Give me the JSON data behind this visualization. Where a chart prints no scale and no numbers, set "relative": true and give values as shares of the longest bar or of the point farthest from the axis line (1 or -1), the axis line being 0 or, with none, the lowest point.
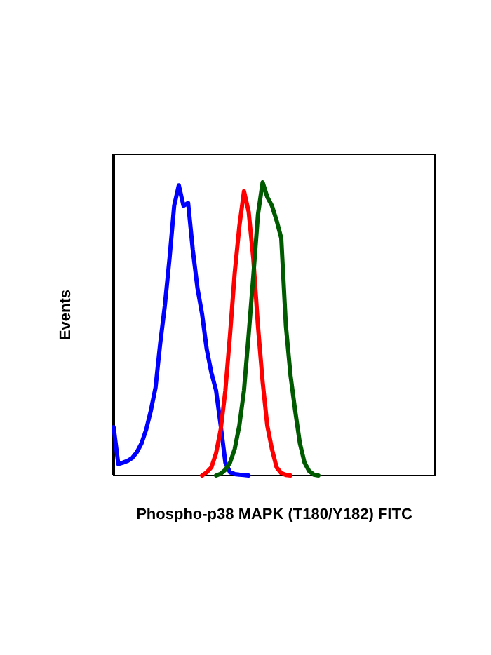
{
  "chart_data": {
    "type": "line",
    "relative": true,
    "xlabel": "Phospho-p38 MAPK (T180/Y182) FITC",
    "ylabel": "Events",
    "categories": [
      null,
      null,
      null,
      null,
      null,
      null,
      null,
      null,
      null,
      null,
      null,
      null,
      null,
      null,
      null,
      null,
      null,
      null,
      null,
      null,
      null,
      null,
      null,
      null,
      null,
      null,
      null,
      null,
      null,
      null,
      null,
      null,
      null,
      null,
      null,
      null,
      null,
      null,
      null,
      null,
      null,
      null,
      null,
      null,
      null,
      null,
      null,
      null,
      null,
      null,
      null,
      null,
      null,
      null,
      null,
      null,
      null,
      null,
      null,
      null,
      null,
      null,
      null,
      null,
      null,
      null,
      null,
      null,
      null,
      null
    ],
    "series": [
      {
        "color": "#0000ff",
        "values": [
          0.165,
          0.039,
          0.044,
          0.05,
          0.06,
          0.08,
          0.11,
          0.157,
          0.222,
          0.3,
          0.45,
          0.58,
          0.74,
          0.92,
          0.99,
          0.92,
          0.93,
          0.77,
          0.64,
          0.55,
          0.43,
          0.35,
          0.29,
          0.17,
          0.044,
          0.011,
          0.005,
          0.003,
          0.002,
          0,
          null,
          null,
          null,
          null,
          null,
          null,
          null,
          null,
          null,
          null,
          null,
          null,
          null,
          null,
          null,
          null,
          null,
          null,
          null,
          null,
          null,
          null,
          null,
          null,
          null,
          null,
          null,
          null,
          null,
          null,
          null,
          null,
          null,
          null,
          null,
          null,
          null,
          null,
          null,
          null
        ]
      },
      {
        "color": "#ff0000",
        "values": [
          null,
          null,
          null,
          null,
          null,
          null,
          null,
          null,
          null,
          null,
          null,
          null,
          null,
          null,
          null,
          null,
          null,
          null,
          null,
          0,
          0.011,
          0.028,
          0.076,
          0.157,
          0.29,
          0.48,
          0.69,
          0.85,
          0.97,
          0.9,
          0.74,
          0.51,
          0.32,
          0.17,
          0.09,
          0.028,
          0.008,
          0.002,
          0,
          null,
          null,
          null,
          null,
          null,
          null,
          null,
          null,
          null,
          null,
          null,
          null,
          null,
          null,
          null,
          null,
          null,
          null,
          null,
          null,
          null,
          null,
          null,
          null,
          null,
          null,
          null,
          null,
          null,
          null,
          null
        ]
      },
      {
        "color": "#005a00",
        "values": [
          null,
          null,
          null,
          null,
          null,
          null,
          null,
          null,
          null,
          null,
          null,
          null,
          null,
          null,
          null,
          null,
          null,
          null,
          null,
          null,
          null,
          null,
          0,
          0.006,
          0.02,
          0.044,
          0.09,
          0.17,
          0.29,
          0.48,
          0.68,
          0.89,
          1.0,
          0.95,
          0.92,
          0.87,
          0.81,
          0.51,
          0.34,
          0.22,
          0.11,
          0.044,
          0.015,
          0.003,
          0,
          null,
          null,
          null,
          null,
          null,
          null,
          null,
          null,
          null,
          null,
          null,
          null,
          null,
          null,
          null,
          null,
          null,
          null,
          null,
          null,
          null,
          null,
          null,
          null,
          null
        ]
      }
    ]
  }
}
